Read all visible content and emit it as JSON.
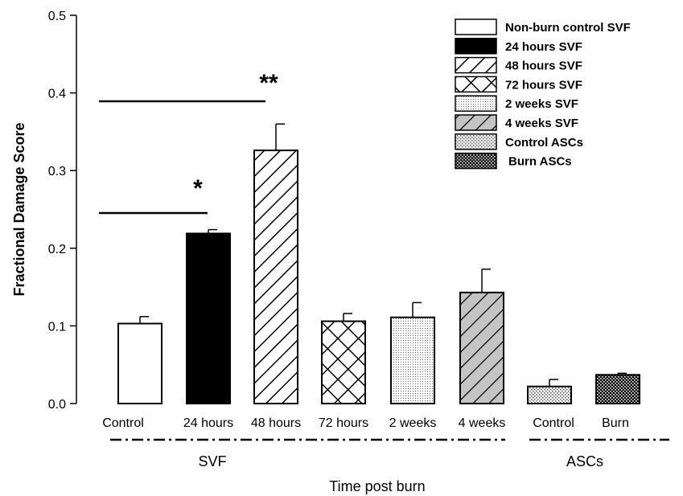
{
  "chart_data": {
    "type": "bar",
    "ylabel": "Fractional Damage Score",
    "xlabel": "Time post burn",
    "ylim": [
      0,
      0.5
    ],
    "yticks": [
      "0.0",
      "0.1",
      "0.2",
      "0.3",
      "0.4",
      "0.5"
    ],
    "categories": [
      "Control",
      "24 hours",
      "48 hours",
      "72 hours",
      "2 weeks",
      "4 weeks",
      "Control",
      "Burn"
    ],
    "values": [
      0.103,
      0.219,
      0.326,
      0.106,
      0.111,
      0.143,
      0.022,
      0.037
    ],
    "errors": [
      0.009,
      0.005,
      0.034,
      0.01,
      0.019,
      0.03,
      0.009,
      0.002
    ],
    "groups": [
      {
        "label": "SVF",
        "from": 0,
        "to": 5
      },
      {
        "label": "ASCs",
        "from": 6,
        "to": 7
      }
    ],
    "legend": {
      "placement": "top-right",
      "entries": [
        {
          "label": "Non-burn control SVF",
          "pattern": "white"
        },
        {
          "label": "24 hours SVF",
          "pattern": "black"
        },
        {
          "label": "48 hours SVF",
          "pattern": "diagonal"
        },
        {
          "label": "72 hours SVF",
          "pattern": "crosshatch"
        },
        {
          "label": "2 weeks SVF",
          "pattern": "fine-dots"
        },
        {
          "label": "4 weeks  SVF",
          "pattern": "gray-diagonal"
        },
        {
          "label": "Control ASCs",
          "pattern": "sparse-dots"
        },
        {
          "label": "Burn ASCs",
          "pattern": "dense-dots"
        }
      ]
    },
    "significance": [
      {
        "marker": "*",
        "from": 0,
        "to": 1,
        "y": 0.245
      },
      {
        "marker": "**",
        "from": 0,
        "to": 2,
        "y": 0.39
      }
    ],
    "grid": false
  }
}
